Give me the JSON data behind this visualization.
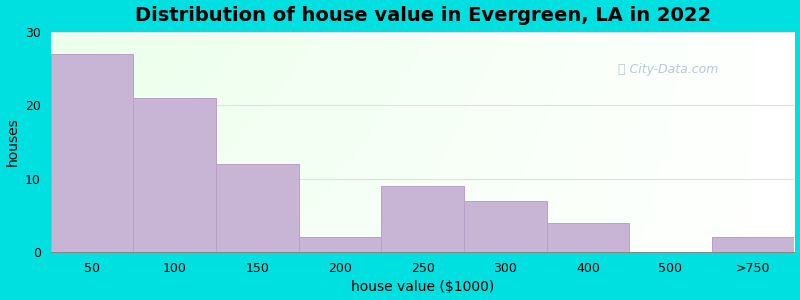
{
  "title": "Distribution of house value in Evergreen, LA in 2022",
  "xlabel": "house value ($1000)",
  "ylabel": "houses",
  "categories": [
    "50",
    "100",
    "150",
    "200",
    "250",
    "300",
    "400",
    "500",
    ">750"
  ],
  "values": [
    27,
    21,
    12,
    2,
    9,
    7,
    4,
    0,
    2
  ],
  "bar_color": "#c8b4d4",
  "bar_edgecolor": "#b8a0c8",
  "background_outer": "#00e0e0",
  "ylim": [
    0,
    30
  ],
  "yticks": [
    0,
    10,
    20,
    30
  ],
  "title_fontsize": 14,
  "axis_label_fontsize": 10,
  "tick_fontsize": 9,
  "watermark_text": "City-Data.com",
  "grid_color": "#e0e0e0"
}
